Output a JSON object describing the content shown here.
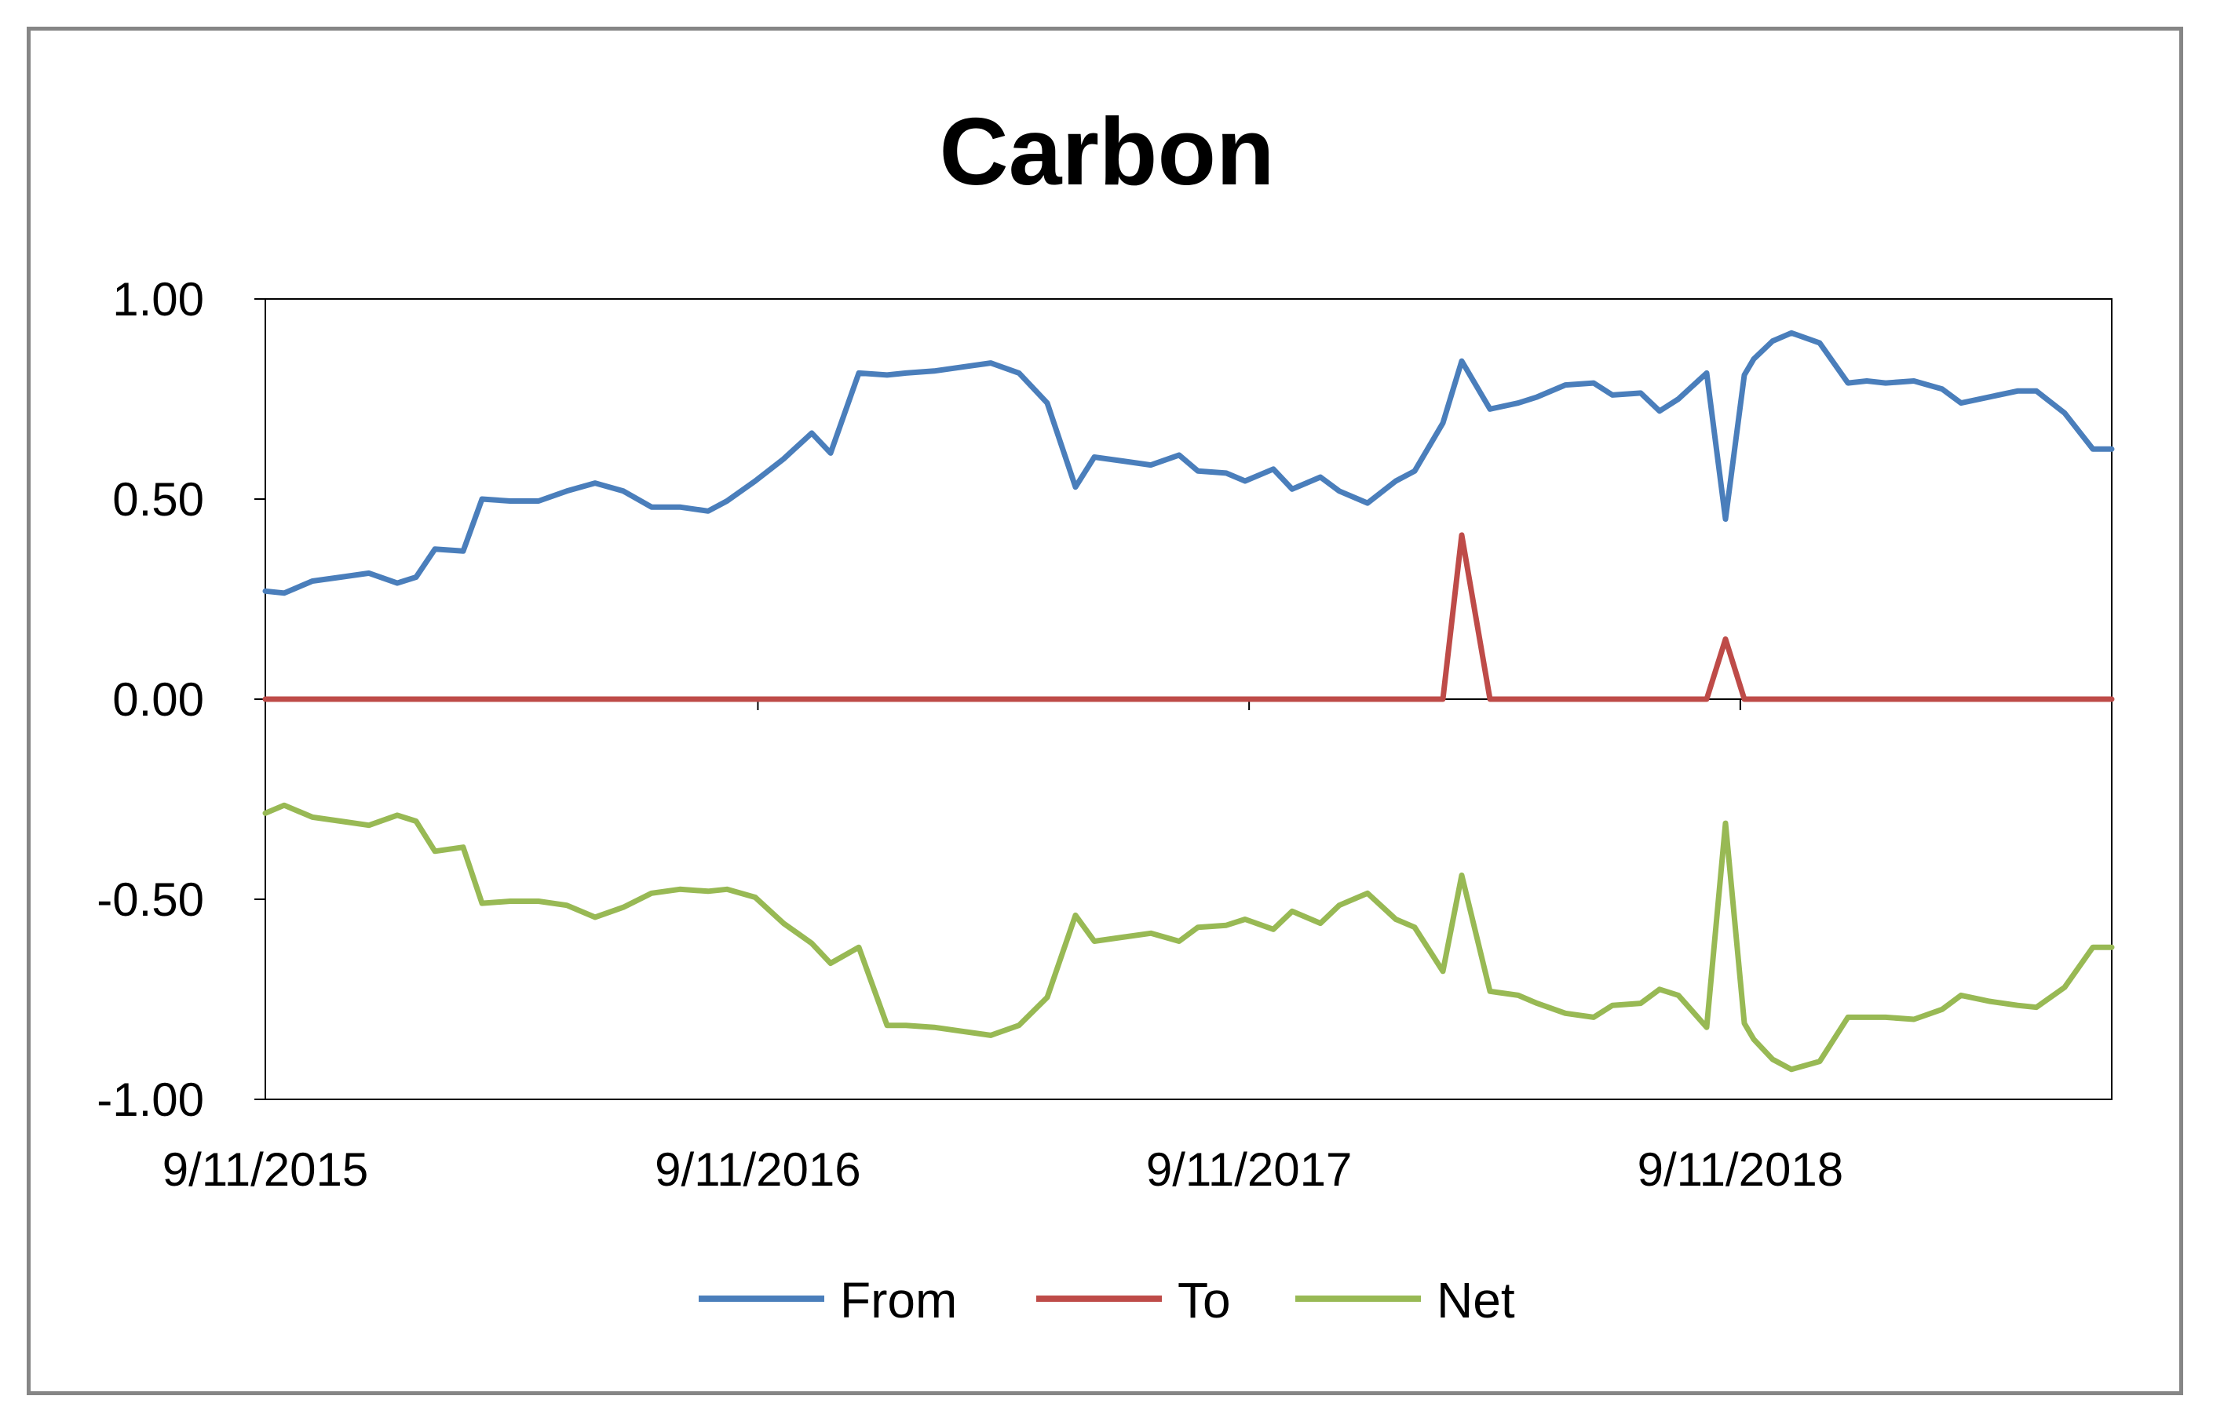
{
  "chart_data": {
    "type": "line",
    "title": "Carbon",
    "xlabel": "",
    "ylabel": "",
    "ylim": [
      -1.0,
      1.0
    ],
    "y_ticks": [
      1.0,
      0.5,
      0.0,
      -0.5,
      -1.0
    ],
    "y_tick_labels": [
      "1.00",
      "0.50",
      "0.00",
      "-0.50",
      "-1.00"
    ],
    "x_range": [
      "2015-09-11",
      "2019-06-14"
    ],
    "x_ticks": [
      "2015-09-11",
      "2016-09-11",
      "2017-09-11",
      "2018-09-11"
    ],
    "x_tick_labels": [
      "9/11/2015",
      "9/11/2016",
      "9/11/2017",
      "9/11/2018"
    ],
    "grid": false,
    "legend_position": "bottom",
    "x": [
      "2015-09-11",
      "2015-09-25",
      "2015-10-16",
      "2015-11-06",
      "2015-11-27",
      "2015-12-18",
      "2016-01-01",
      "2016-01-15",
      "2016-02-05",
      "2016-02-19",
      "2016-03-11",
      "2016-04-01",
      "2016-04-22",
      "2016-05-13",
      "2016-06-03",
      "2016-06-24",
      "2016-07-15",
      "2016-08-05",
      "2016-08-19",
      "2016-09-09",
      "2016-09-30",
      "2016-10-21",
      "2016-11-04",
      "2016-11-25",
      "2016-12-16",
      "2016-12-30",
      "2017-01-20",
      "2017-02-10",
      "2017-03-03",
      "2017-03-24",
      "2017-04-14",
      "2017-05-05",
      "2017-05-19",
      "2017-06-09",
      "2017-06-30",
      "2017-07-21",
      "2017-08-04",
      "2017-08-25",
      "2017-09-08",
      "2017-09-29",
      "2017-10-13",
      "2017-11-03",
      "2017-11-17",
      "2017-12-08",
      "2017-12-29",
      "2018-01-12",
      "2018-02-02",
      "2018-02-16",
      "2018-03-09",
      "2018-03-30",
      "2018-04-13",
      "2018-05-04",
      "2018-05-25",
      "2018-06-08",
      "2018-06-29",
      "2018-07-13",
      "2018-07-27",
      "2018-08-17",
      "2018-08-31",
      "2018-09-14",
      "2018-09-21",
      "2018-10-05",
      "2018-10-19",
      "2018-11-09",
      "2018-11-30",
      "2018-12-14",
      "2018-12-28",
      "2019-01-18",
      "2019-02-08",
      "2019-02-22",
      "2019-03-15",
      "2019-04-05",
      "2019-04-19",
      "2019-05-10",
      "2019-05-31",
      "2019-06-14"
    ],
    "series": [
      {
        "name": "From",
        "color": "#4a7ebb",
        "values": [
          0.27,
          0.265,
          0.295,
          0.305,
          0.315,
          0.29,
          0.305,
          0.375,
          0.37,
          0.5,
          0.495,
          0.495,
          0.52,
          0.54,
          0.52,
          0.48,
          0.48,
          0.47,
          0.495,
          0.545,
          0.6,
          0.665,
          0.615,
          0.815,
          0.81,
          0.815,
          0.82,
          0.83,
          0.84,
          0.815,
          0.74,
          0.53,
          0.605,
          0.595,
          0.585,
          0.61,
          0.57,
          0.565,
          0.545,
          0.575,
          0.525,
          0.555,
          0.52,
          0.49,
          0.545,
          0.57,
          0.69,
          0.845,
          0.725,
          0.74,
          0.755,
          0.785,
          0.79,
          0.76,
          0.765,
          0.72,
          0.75,
          0.815,
          0.45,
          0.81,
          0.85,
          0.895,
          0.915,
          0.89,
          0.79,
          0.795,
          0.79,
          0.795,
          0.775,
          0.74,
          0.755,
          0.77,
          0.77,
          0.715,
          0.625,
          0.625
        ]
      },
      {
        "name": "To",
        "color": "#be4b48",
        "values": [
          0,
          0,
          0,
          0,
          0,
          0,
          0,
          0,
          0,
          0,
          0,
          0,
          0,
          0,
          0,
          0,
          0,
          0,
          0,
          0,
          0,
          0,
          0,
          0,
          0,
          0,
          0,
          0,
          0,
          0,
          0,
          0,
          0,
          0,
          0,
          0,
          0,
          0,
          0,
          0,
          0,
          0,
          0,
          0,
          0,
          0,
          0,
          0.41,
          0,
          0,
          0,
          0,
          0,
          0,
          0,
          0,
          0,
          0,
          0.15,
          0,
          0,
          0,
          0,
          0,
          0,
          0,
          0,
          0,
          0,
          0,
          0,
          0,
          0,
          0,
          0,
          0
        ]
      },
      {
        "name": "Net",
        "color": "#98b954",
        "values": [
          -0.285,
          -0.265,
          -0.295,
          -0.305,
          -0.315,
          -0.29,
          -0.305,
          -0.38,
          -0.37,
          -0.51,
          -0.505,
          -0.505,
          -0.515,
          -0.545,
          -0.52,
          -0.485,
          -0.475,
          -0.48,
          -0.475,
          -0.495,
          -0.56,
          -0.61,
          -0.66,
          -0.62,
          -0.815,
          -0.815,
          -0.82,
          -0.83,
          -0.84,
          -0.815,
          -0.745,
          -0.54,
          -0.605,
          -0.595,
          -0.585,
          -0.605,
          -0.57,
          -0.565,
          -0.55,
          -0.575,
          -0.53,
          -0.56,
          -0.515,
          -0.485,
          -0.55,
          -0.57,
          -0.68,
          -0.44,
          -0.73,
          -0.74,
          -0.76,
          -0.785,
          -0.795,
          -0.765,
          -0.76,
          -0.725,
          -0.74,
          -0.82,
          -0.31,
          -0.81,
          -0.85,
          -0.9,
          -0.925,
          -0.905,
          -0.795,
          -0.795,
          -0.795,
          -0.8,
          -0.775,
          -0.74,
          -0.755,
          -0.765,
          -0.77,
          -0.72,
          -0.62,
          -0.62
        ]
      }
    ]
  }
}
